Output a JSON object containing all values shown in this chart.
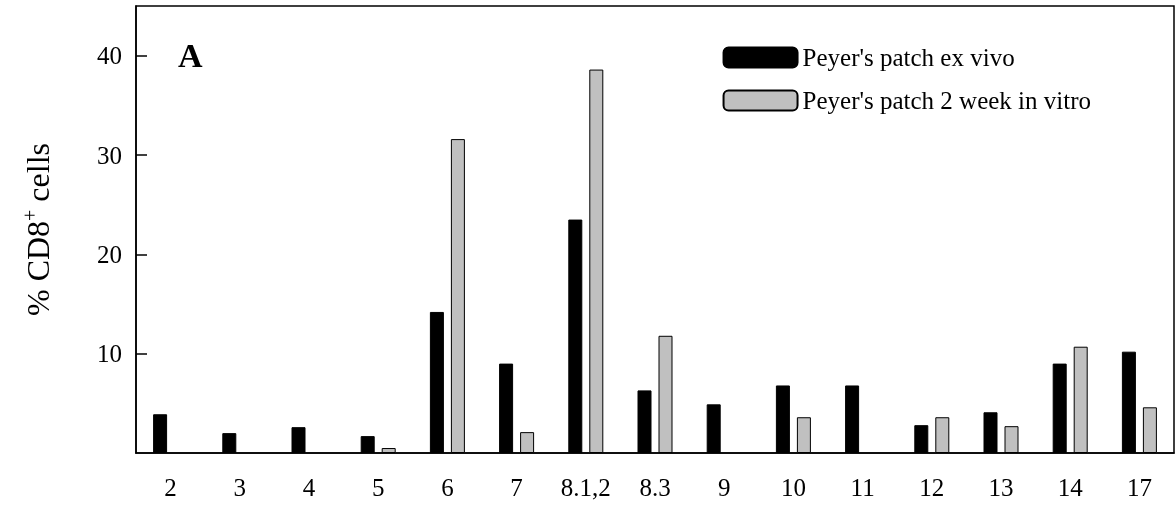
{
  "chart_data": {
    "type": "bar",
    "ylabel": "% CD8$^{+}$ cells",
    "annotations": [
      "A"
    ],
    "categories": [
      "2",
      "3",
      "4",
      "5",
      "6",
      "7",
      "8.1,2",
      "8.3",
      "9",
      "10",
      "11",
      "12",
      "13",
      "14",
      "17"
    ],
    "series": [
      {
        "name": "Peyer's patch ex vivo",
        "color": "#000000",
        "values": [
          3.9,
          2.0,
          2.6,
          1.7,
          14.2,
          9.0,
          23.5,
          6.3,
          4.9,
          6.8,
          6.8,
          2.8,
          4.1,
          9.0,
          10.2
        ]
      },
      {
        "name": "Peyer's patch 2 week in vitro",
        "color": "#c0c0c0",
        "values": [
          null,
          null,
          null,
          0.5,
          31.6,
          2.1,
          38.6,
          11.8,
          null,
          3.6,
          null,
          3.6,
          2.7,
          10.7,
          4.6
        ]
      }
    ],
    "ylim": [
      0,
      45
    ],
    "yticks": [
      10,
      20,
      30,
      40
    ],
    "grid": false,
    "legend": "top right"
  }
}
